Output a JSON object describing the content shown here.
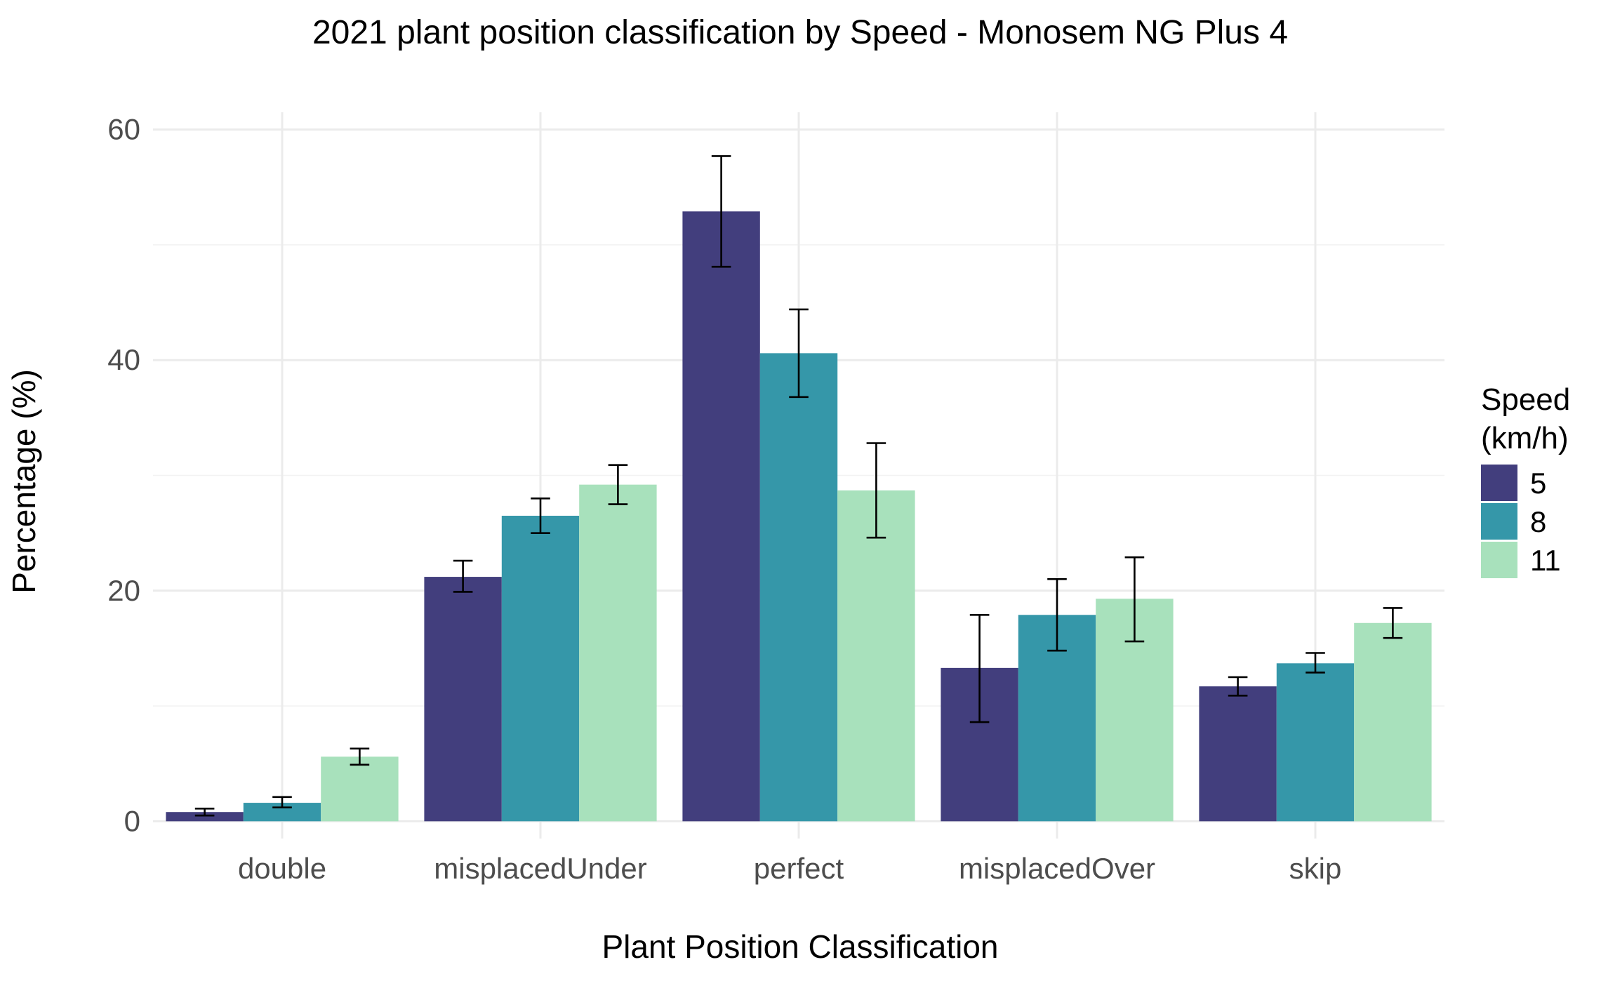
{
  "chart_data": {
    "type": "bar",
    "title": "2021 plant position classification by Speed - Monosem NG Plus 4",
    "xlabel": "Plant Position Classification",
    "ylabel": "Percentage (%)",
    "ylim": [
      -1.5,
      61.5
    ],
    "yticks": [
      0,
      20,
      40,
      60
    ],
    "grid": true,
    "legend": {
      "title_lines": [
        "Speed",
        "(km/h)"
      ],
      "placement": "right"
    },
    "categories": [
      "double",
      "misplacedUnder",
      "perfect",
      "misplacedOver",
      "skip"
    ],
    "series": [
      {
        "name": "5",
        "color": "#423E7D",
        "values": [
          0.8,
          21.2,
          52.9,
          13.3,
          11.7
        ],
        "err_low": [
          0.5,
          19.9,
          48.1,
          8.6,
          10.9
        ],
        "err_high": [
          1.1,
          22.6,
          57.7,
          17.9,
          12.5
        ]
      },
      {
        "name": "8",
        "color": "#3597A9",
        "values": [
          1.6,
          26.5,
          40.6,
          17.9,
          13.7
        ],
        "err_low": [
          1.2,
          25.0,
          36.8,
          14.8,
          12.9
        ],
        "err_high": [
          2.1,
          28.0,
          44.4,
          21.0,
          14.6
        ]
      },
      {
        "name": "11",
        "color": "#A8E1BC",
        "values": [
          5.6,
          29.2,
          28.7,
          19.3,
          17.2
        ],
        "err_low": [
          4.9,
          27.5,
          24.6,
          15.6,
          15.9
        ],
        "err_high": [
          6.3,
          30.9,
          32.8,
          22.9,
          18.5
        ]
      }
    ]
  }
}
